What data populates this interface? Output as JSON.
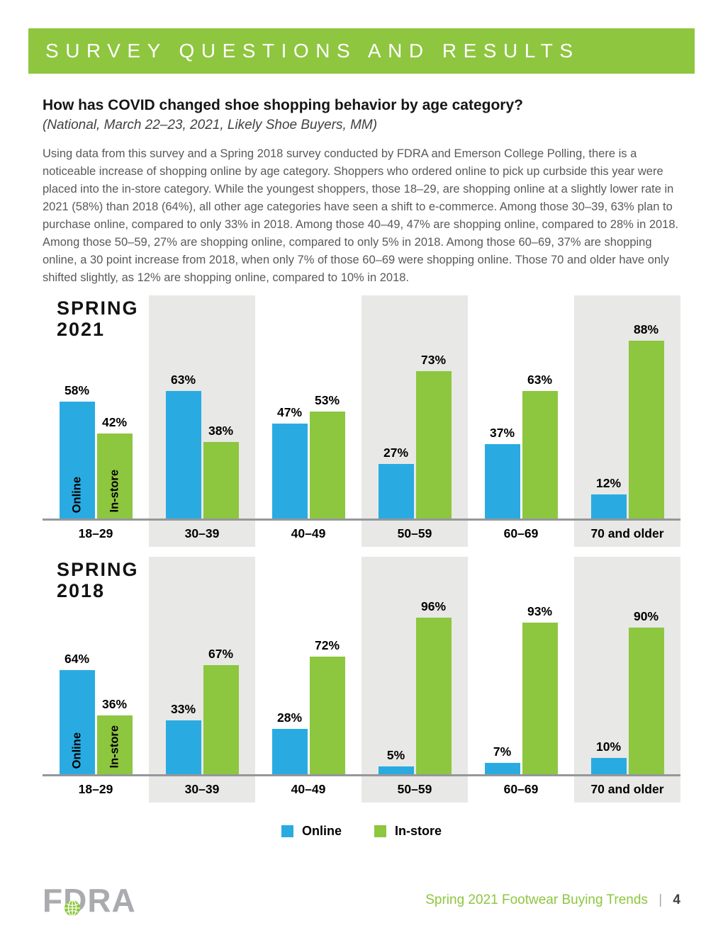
{
  "banner": {
    "title": "SURVEY QUESTIONS AND RESULTS"
  },
  "question": {
    "heading": "How has COVID changed shoe shopping behavior by age category?",
    "subheading": "(National, March 22–23, 2021, Likely Shoe Buyers, MM)",
    "body": "Using data from this survey and a Spring 2018 survey conducted by FDRA and Emerson College Polling, there is a noticeable increase of shopping online by age category. Shoppers who ordered online to pick up curbside this year were placed into the in-store category. While the youngest shoppers, those 18–29, are shopping online at a slightly lower rate in 2021 (58%) than 2018 (64%), all other age categories have seen a shift to e-commerce. Among those 30–39, 63% plan to purchase online, compared to only 33% in 2018. Among those 40–49, 47% are shopping online, compared to 28% in 2018. Among those 50–59, 27% are shopping online, compared to only 5% in 2018. Among those 60–69, 37% are shopping online, a 30 point increase from 2018, when only 7% of those 60–69 were shopping online. Those 70 and older have only shifted slightly, as 12% are shopping online, compared to 10% in 2018."
  },
  "colors": {
    "online_blue": "#29ABE2",
    "instore_green": "#8DC63F",
    "banner_green": "#8EC63F",
    "stripe_gray": "#E8E8E6",
    "axis_gray": "#95979A",
    "body_text_gray": "#58595B"
  },
  "chart_data": [
    {
      "type": "bar",
      "title": "SPRING 2021",
      "categories": [
        "18–29",
        "30–39",
        "40–49",
        "50–59",
        "60–69",
        "70 and older"
      ],
      "series": [
        {
          "name": "Online",
          "color": "#29ABE2",
          "values": [
            58,
            63,
            47,
            27,
            37,
            12
          ]
        },
        {
          "name": "In-store",
          "color": "#8DC63F",
          "values": [
            42,
            38,
            53,
            73,
            63,
            88
          ]
        }
      ],
      "value_suffix": "%",
      "ylim": [
        0,
        100
      ],
      "grid": false,
      "legend_position": "none",
      "first_group_inbar_labels": true,
      "striped_background_columns": [
        "30–39",
        "50–59",
        "70 and older"
      ]
    },
    {
      "type": "bar",
      "title": "SPRING 2018",
      "categories": [
        "18–29",
        "30–39",
        "40–49",
        "50–59",
        "60–69",
        "70 and older"
      ],
      "series": [
        {
          "name": "Online",
          "color": "#29ABE2",
          "values": [
            64,
            33,
            28,
            5,
            7,
            10
          ]
        },
        {
          "name": "In-store",
          "color": "#8DC63F",
          "values": [
            36,
            67,
            72,
            96,
            93,
            90
          ]
        }
      ],
      "value_suffix": "%",
      "ylim": [
        0,
        100
      ],
      "grid": false,
      "legend_position": "bottom",
      "first_group_inbar_labels": true,
      "striped_background_columns": [
        "30–39",
        "50–59",
        "70 and older"
      ]
    }
  ],
  "legend": {
    "items": [
      {
        "label": "Online",
        "color": "#29ABE2"
      },
      {
        "label": "In-store",
        "color": "#8DC63F"
      }
    ]
  },
  "footer": {
    "brand": "FDRA",
    "report_title": "Spring 2021 Footwear Buying Trends",
    "divider": "|",
    "page_number": "4"
  }
}
